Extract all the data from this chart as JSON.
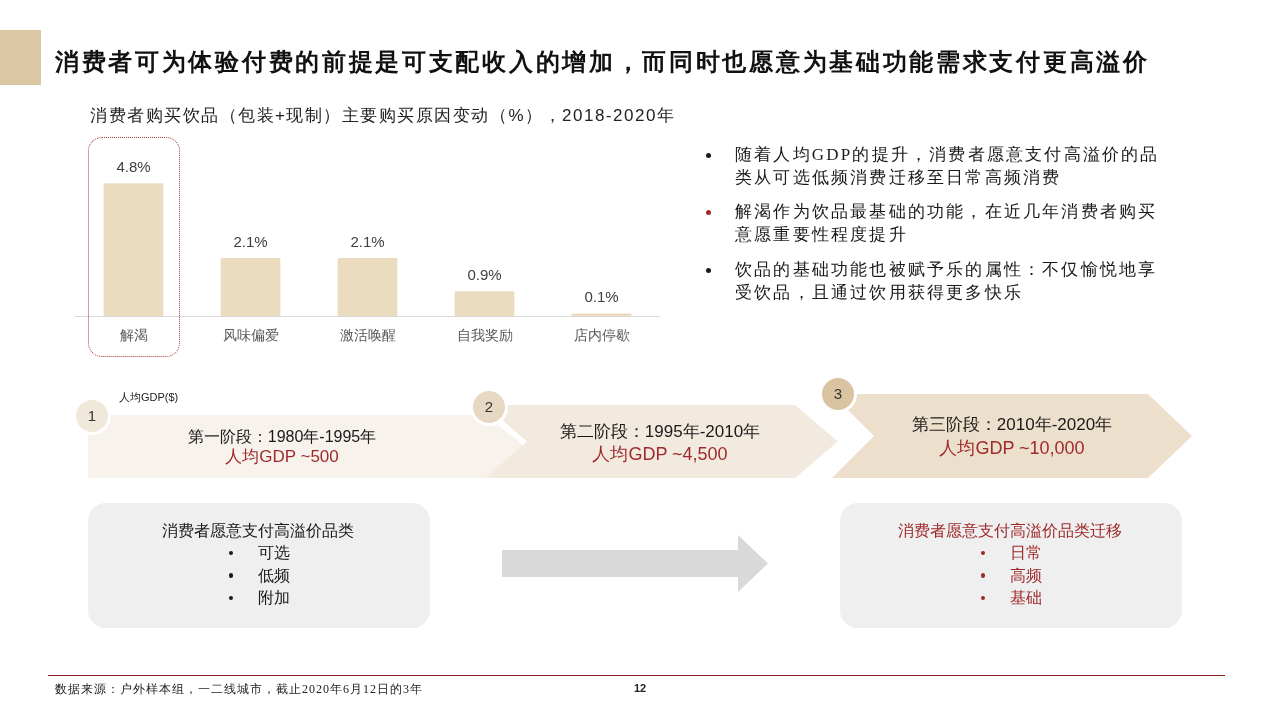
{
  "chart_data": {
    "type": "bar",
    "title": "消费者可为体验付费的前提是可支配收入的增加，而同时也愿意为基础功能需求支付更高溢价",
    "subtitle": "消费者购买饮品（包装+现制）主要购买原因变动（%），2018-2020年",
    "categories": [
      "解渴",
      "风味偏爱",
      "激活唤醒",
      "自我奖励",
      "店内停歇"
    ],
    "values": [
      4.8,
      2.1,
      2.1,
      0.9,
      0.1
    ],
    "value_labels": [
      "4.8%",
      "2.1%",
      "2.1%",
      "0.9%",
      "0.1%"
    ],
    "color": "#ebdcc0",
    "annotations": [
      "人均GDP($)",
      "1",
      "第一阶段：1980年-1995年",
      "人均GDP ~500",
      "2",
      "第二阶段：1995年-2010年",
      "人均GDP ~4,500",
      "3",
      "第三阶段：2010年-2020年",
      "人均GDP ~10,000",
      "随着人均GDP的提升，消费者愿意支付高溢价的品类从可选低频消费迁移至日常高频消费",
      "解渴作为饮品最基础的功能，在近几年消费者购买意愿重要性程度提升",
      "饮品的基础功能也被赋予乐的属性：不仅愉悦地享受饮品，且通过饮用获得更多快乐",
      "消费者愿意支付高溢价品类",
      "可选",
      "低频",
      "附加",
      "消费者愿意支付高溢价品类迁移",
      "日常",
      "高频",
      "基础",
      "数据来源：户外样本组，一二线城市，截止2020年6月12日的3年",
      "12"
    ]
  }
}
